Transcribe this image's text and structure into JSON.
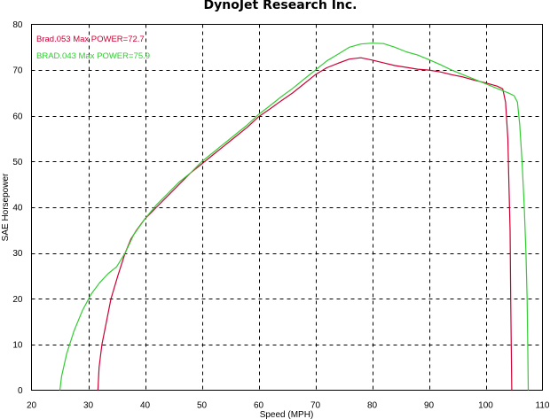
{
  "chart_data": {
    "type": "line",
    "title": "DynoJet Research Inc.",
    "xlabel": "Speed (MPH)",
    "ylabel": "SAE Horsepower",
    "xlim": [
      20,
      110
    ],
    "ylim": [
      0,
      80
    ],
    "xticks": [
      20,
      30,
      40,
      50,
      60,
      70,
      80,
      90,
      100,
      110
    ],
    "yticks": [
      0,
      10,
      20,
      30,
      40,
      50,
      60,
      70,
      80
    ],
    "grid": true,
    "legend_position": "top-left",
    "series": [
      {
        "name": "Brad.053  Max POWER=72.7",
        "color": "#cc0033",
        "points": [
          [
            31.7,
            0
          ],
          [
            31.9,
            5
          ],
          [
            32.4,
            10
          ],
          [
            33.2,
            15
          ],
          [
            34.0,
            20
          ],
          [
            35.2,
            25
          ],
          [
            36.5,
            30
          ],
          [
            37.5,
            33
          ],
          [
            38.5,
            35
          ],
          [
            40,
            37.5
          ],
          [
            42,
            40
          ],
          [
            44,
            42.5
          ],
          [
            46,
            45
          ],
          [
            48,
            47.5
          ],
          [
            50,
            49.5
          ],
          [
            52,
            51.5
          ],
          [
            54,
            53.5
          ],
          [
            56,
            55.5
          ],
          [
            58,
            57.5
          ],
          [
            60,
            59.8
          ],
          [
            62,
            61.5
          ],
          [
            64,
            63.3
          ],
          [
            66,
            65
          ],
          [
            68,
            67
          ],
          [
            70,
            69
          ],
          [
            72,
            70.5
          ],
          [
            74,
            71.5
          ],
          [
            76,
            72.4
          ],
          [
            78,
            72.7
          ],
          [
            80,
            72.2
          ],
          [
            82,
            71.6
          ],
          [
            84,
            71
          ],
          [
            86,
            70.6
          ],
          [
            88,
            70.2
          ],
          [
            90,
            70
          ],
          [
            92,
            69.6
          ],
          [
            94,
            69
          ],
          [
            96,
            68.5
          ],
          [
            98,
            67.8
          ],
          [
            100,
            67.2
          ],
          [
            102,
            66.5
          ],
          [
            103,
            65.9
          ],
          [
            103.5,
            63
          ],
          [
            103.9,
            55
          ],
          [
            104.1,
            45
          ],
          [
            104.3,
            35
          ],
          [
            104.4,
            20
          ],
          [
            104.5,
            10
          ],
          [
            104.6,
            0
          ]
        ]
      },
      {
        "name": "BRAD.043  Max POWER=75.9",
        "color": "#33cc33",
        "points": [
          [
            25,
            0
          ],
          [
            25.3,
            3
          ],
          [
            26.2,
            8
          ],
          [
            27.5,
            13
          ],
          [
            29,
            17.5
          ],
          [
            30.5,
            21
          ],
          [
            32,
            23.5
          ],
          [
            33.5,
            25.5
          ],
          [
            35,
            27
          ],
          [
            36.5,
            30
          ],
          [
            38,
            34
          ],
          [
            40,
            37.5
          ],
          [
            42,
            40.5
          ],
          [
            44,
            43
          ],
          [
            46,
            45.5
          ],
          [
            48,
            47.5
          ],
          [
            50,
            50
          ],
          [
            52,
            52
          ],
          [
            54,
            54
          ],
          [
            56,
            56
          ],
          [
            58,
            58
          ],
          [
            60,
            60.3
          ],
          [
            62,
            62.2
          ],
          [
            64,
            64.2
          ],
          [
            66,
            66
          ],
          [
            68,
            68
          ],
          [
            70,
            70
          ],
          [
            72,
            72
          ],
          [
            74,
            73.5
          ],
          [
            76,
            75
          ],
          [
            78,
            75.7
          ],
          [
            80,
            75.9
          ],
          [
            82,
            75.8
          ],
          [
            84,
            75
          ],
          [
            86,
            74
          ],
          [
            88,
            73.3
          ],
          [
            90,
            72.3
          ],
          [
            92,
            71.2
          ],
          [
            94,
            70
          ],
          [
            96,
            69
          ],
          [
            98,
            68
          ],
          [
            100,
            67
          ],
          [
            102,
            66
          ],
          [
            104,
            65
          ],
          [
            105,
            64.4
          ],
          [
            105.6,
            63
          ],
          [
            106,
            58
          ],
          [
            106.4,
            50
          ],
          [
            106.8,
            40
          ],
          [
            107.1,
            30
          ],
          [
            107.3,
            20
          ],
          [
            107.4,
            10
          ],
          [
            107.5,
            0
          ]
        ]
      }
    ]
  }
}
